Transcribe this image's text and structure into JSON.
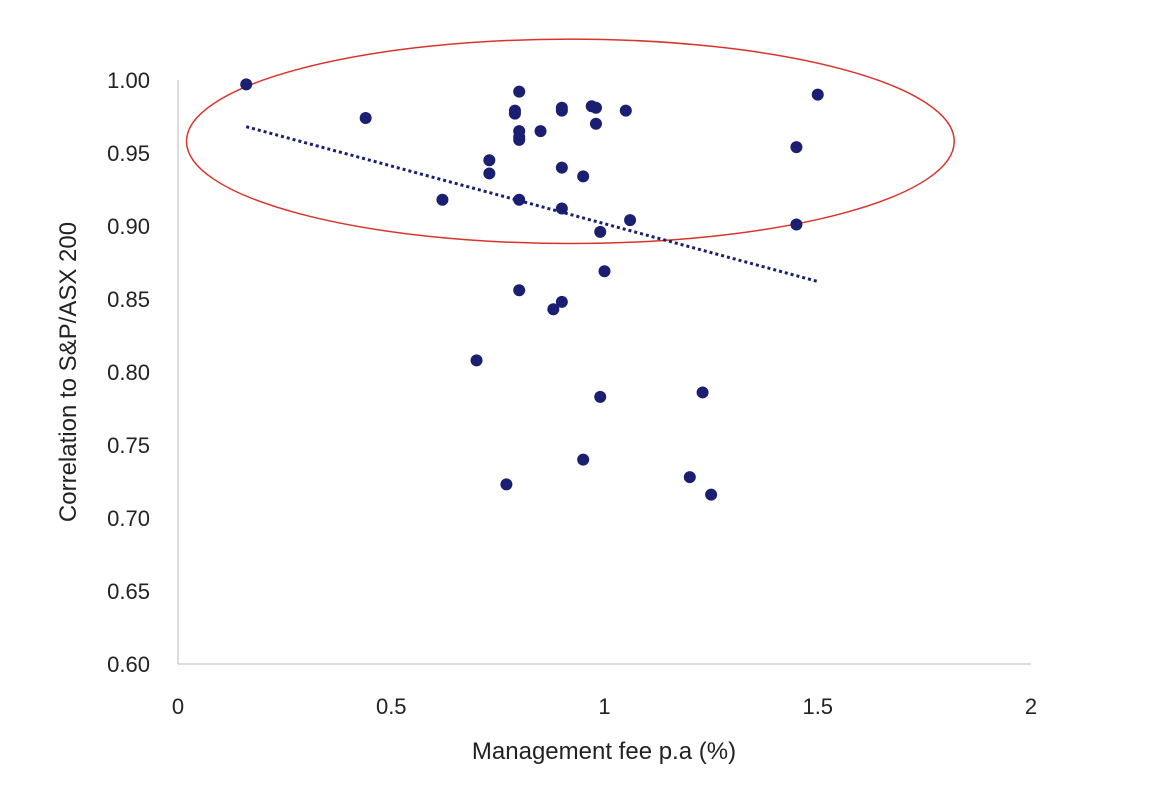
{
  "chart_data": {
    "type": "scatter",
    "xlabel": "Management fee p.a (%)",
    "ylabel": "Correlation to S&P/ASX 200",
    "xlim": [
      0,
      2
    ],
    "ylim": [
      0.6,
      1.0
    ],
    "x_ticks": [
      "0",
      "0.5",
      "1",
      "1.5",
      "2"
    ],
    "x_tick_values": [
      0,
      0.5,
      1,
      1.5,
      2
    ],
    "y_ticks": [
      "1.00",
      "0.95",
      "0.90",
      "0.85",
      "0.80",
      "0.75",
      "0.70",
      "0.65",
      "0.60"
    ],
    "y_tick_values": [
      1.0,
      0.95,
      0.9,
      0.85,
      0.8,
      0.75,
      0.7,
      0.65,
      0.6
    ],
    "grid": false,
    "point_color": "#1a1f71",
    "trendline": {
      "style": "dotted",
      "color": "#1a1f71",
      "points": [
        [
          0.16,
          0.968
        ],
        [
          1.5,
          0.862
        ]
      ]
    },
    "highlight_ellipse": {
      "color": "#d9342b",
      "center": [
        0.92,
        0.958
      ],
      "x_radius": 0.9,
      "y_radius": 0.07
    },
    "points": [
      [
        0.16,
        0.997
      ],
      [
        0.44,
        0.974
      ],
      [
        0.62,
        0.918
      ],
      [
        0.7,
        0.808
      ],
      [
        0.73,
        0.945
      ],
      [
        0.73,
        0.936
      ],
      [
        0.77,
        0.723
      ],
      [
        0.79,
        0.979
      ],
      [
        0.79,
        0.977
      ],
      [
        0.8,
        0.992
      ],
      [
        0.8,
        0.965
      ],
      [
        0.8,
        0.961
      ],
      [
        0.8,
        0.959
      ],
      [
        0.8,
        0.918
      ],
      [
        0.8,
        0.856
      ],
      [
        0.85,
        0.965
      ],
      [
        0.88,
        0.843
      ],
      [
        0.9,
        0.981
      ],
      [
        0.9,
        0.979
      ],
      [
        0.9,
        0.94
      ],
      [
        0.9,
        0.912
      ],
      [
        0.9,
        0.848
      ],
      [
        0.95,
        0.934
      ],
      [
        0.95,
        0.74
      ],
      [
        0.97,
        0.982
      ],
      [
        0.98,
        0.981
      ],
      [
        0.98,
        0.97
      ],
      [
        0.99,
        0.896
      ],
      [
        0.99,
        0.783
      ],
      [
        1.0,
        0.869
      ],
      [
        1.05,
        0.979
      ],
      [
        1.06,
        0.904
      ],
      [
        1.2,
        0.728
      ],
      [
        1.23,
        0.786
      ],
      [
        1.25,
        0.716
      ],
      [
        1.45,
        0.954
      ],
      [
        1.45,
        0.901
      ],
      [
        1.5,
        0.99
      ]
    ]
  }
}
